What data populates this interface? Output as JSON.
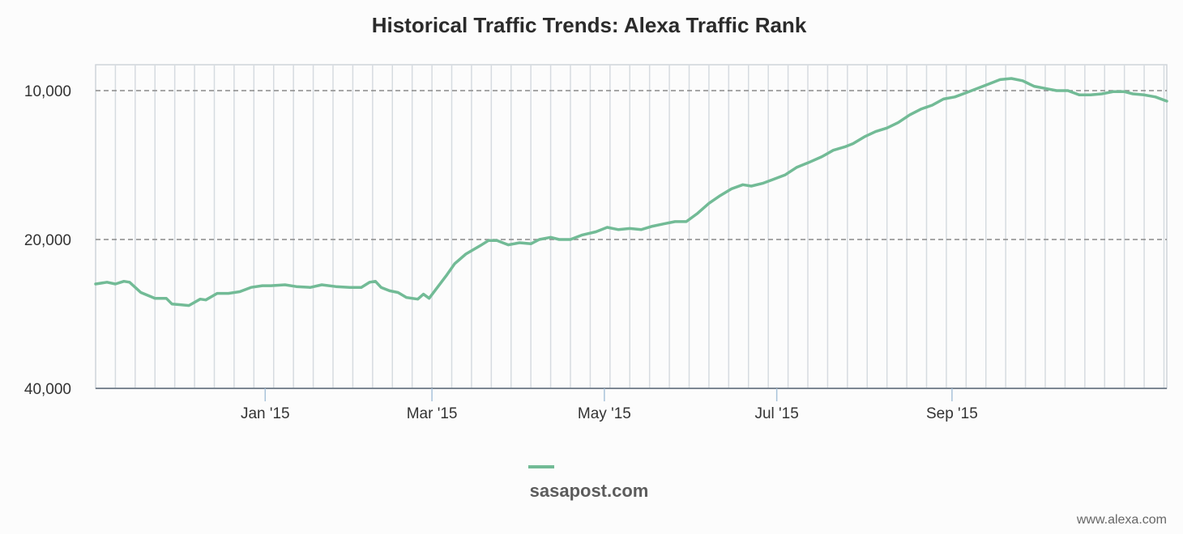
{
  "chart_data": {
    "type": "line",
    "title": "Historical Traffic Trends: Alexa Traffic Rank",
    "y_scale": "log",
    "y_reversed": true,
    "ylim": [
      40000,
      8500
    ],
    "yticks": [
      {
        "value": 10000,
        "label": "10,000"
      },
      {
        "value": 20000,
        "label": "20,000"
      },
      {
        "value": 40000,
        "label": "40,000"
      }
    ],
    "xlim": [
      "2014-11-02",
      "2015-11-16"
    ],
    "xticks": [
      {
        "date": "2015-01-01",
        "label": "Jan '15"
      },
      {
        "date": "2015-03-01",
        "label": "Mar '15"
      },
      {
        "date": "2015-05-01",
        "label": "May '15"
      },
      {
        "date": "2015-07-01",
        "label": "Jul '15"
      },
      {
        "date": "2015-09-01",
        "label": "Sep '15"
      }
    ],
    "grid": {
      "vertical": true,
      "horizontal_dashed": true
    },
    "legend_position": "bottom-center",
    "color": "#72bb96",
    "series": [
      {
        "name": "sasapost.com",
        "points": [
          [
            "2014-11-02",
            24600
          ],
          [
            "2014-11-06",
            24400
          ],
          [
            "2014-11-09",
            24600
          ],
          [
            "2014-11-12",
            24300
          ],
          [
            "2014-11-14",
            24400
          ],
          [
            "2014-11-18",
            25600
          ],
          [
            "2014-11-23",
            26300
          ],
          [
            "2014-11-27",
            26300
          ],
          [
            "2014-11-29",
            27000
          ],
          [
            "2014-12-02",
            27100
          ],
          [
            "2014-12-05",
            27200
          ],
          [
            "2014-12-09",
            26400
          ],
          [
            "2014-12-11",
            26500
          ],
          [
            "2014-12-15",
            25700
          ],
          [
            "2014-12-19",
            25700
          ],
          [
            "2014-12-23",
            25500
          ],
          [
            "2014-12-27",
            25000
          ],
          [
            "2014-12-31",
            24800
          ],
          [
            "2015-01-03",
            24800
          ],
          [
            "2015-01-08",
            24700
          ],
          [
            "2015-01-12",
            24900
          ],
          [
            "2015-01-17",
            25000
          ],
          [
            "2015-01-21",
            24700
          ],
          [
            "2015-01-26",
            24900
          ],
          [
            "2015-01-31",
            25000
          ],
          [
            "2015-02-04",
            25000
          ],
          [
            "2015-02-07",
            24400
          ],
          [
            "2015-02-09",
            24300
          ],
          [
            "2015-02-11",
            25000
          ],
          [
            "2015-02-14",
            25400
          ],
          [
            "2015-02-17",
            25600
          ],
          [
            "2015-02-20",
            26200
          ],
          [
            "2015-02-24",
            26400
          ],
          [
            "2015-02-26",
            25800
          ],
          [
            "2015-02-28",
            26300
          ],
          [
            "2015-03-02",
            25400
          ],
          [
            "2015-03-06",
            23700
          ],
          [
            "2015-03-09",
            22400
          ],
          [
            "2015-03-13",
            21400
          ],
          [
            "2015-03-18",
            20600
          ],
          [
            "2015-03-21",
            20100
          ],
          [
            "2015-03-24",
            20100
          ],
          [
            "2015-03-28",
            20500
          ],
          [
            "2015-04-01",
            20300
          ],
          [
            "2015-04-05",
            20400
          ],
          [
            "2015-04-08",
            20000
          ],
          [
            "2015-04-12",
            19800
          ],
          [
            "2015-04-15",
            20000
          ],
          [
            "2015-04-19",
            20000
          ],
          [
            "2015-04-23",
            19600
          ],
          [
            "2015-04-28",
            19300
          ],
          [
            "2015-05-02",
            18900
          ],
          [
            "2015-05-06",
            19100
          ],
          [
            "2015-05-10",
            19000
          ],
          [
            "2015-05-14",
            19100
          ],
          [
            "2015-05-18",
            18800
          ],
          [
            "2015-05-22",
            18600
          ],
          [
            "2015-05-26",
            18400
          ],
          [
            "2015-05-30",
            18400
          ],
          [
            "2015-06-03",
            17700
          ],
          [
            "2015-06-07",
            16900
          ],
          [
            "2015-06-11",
            16300
          ],
          [
            "2015-06-15",
            15800
          ],
          [
            "2015-06-19",
            15500
          ],
          [
            "2015-06-22",
            15600
          ],
          [
            "2015-06-26",
            15400
          ],
          [
            "2015-06-30",
            15100
          ],
          [
            "2015-07-04",
            14800
          ],
          [
            "2015-07-08",
            14300
          ],
          [
            "2015-07-12",
            14000
          ],
          [
            "2015-07-17",
            13600
          ],
          [
            "2015-07-21",
            13200
          ],
          [
            "2015-07-25",
            13000
          ],
          [
            "2015-07-28",
            12800
          ],
          [
            "2015-08-01",
            12400
          ],
          [
            "2015-08-05",
            12100
          ],
          [
            "2015-08-09",
            11900
          ],
          [
            "2015-08-13",
            11600
          ],
          [
            "2015-08-17",
            11200
          ],
          [
            "2015-08-21",
            10900
          ],
          [
            "2015-08-25",
            10700
          ],
          [
            "2015-08-29",
            10400
          ],
          [
            "2015-09-02",
            10300
          ],
          [
            "2015-09-06",
            10100
          ],
          [
            "2015-09-10",
            9900
          ],
          [
            "2015-09-14",
            9700
          ],
          [
            "2015-09-18",
            9500
          ],
          [
            "2015-09-22",
            9450
          ],
          [
            "2015-09-26",
            9550
          ],
          [
            "2015-09-30",
            9800
          ],
          [
            "2015-10-04",
            9900
          ],
          [
            "2015-10-08",
            10000
          ],
          [
            "2015-10-12",
            10000
          ],
          [
            "2015-10-16",
            10200
          ],
          [
            "2015-10-20",
            10200
          ],
          [
            "2015-10-24",
            10150
          ],
          [
            "2015-10-28",
            10050
          ],
          [
            "2015-11-01",
            10050
          ],
          [
            "2015-11-04",
            10150
          ],
          [
            "2015-11-08",
            10200
          ],
          [
            "2015-11-12",
            10300
          ],
          [
            "2015-11-16",
            10500
          ]
        ]
      }
    ]
  },
  "credit": "www.alexa.com"
}
